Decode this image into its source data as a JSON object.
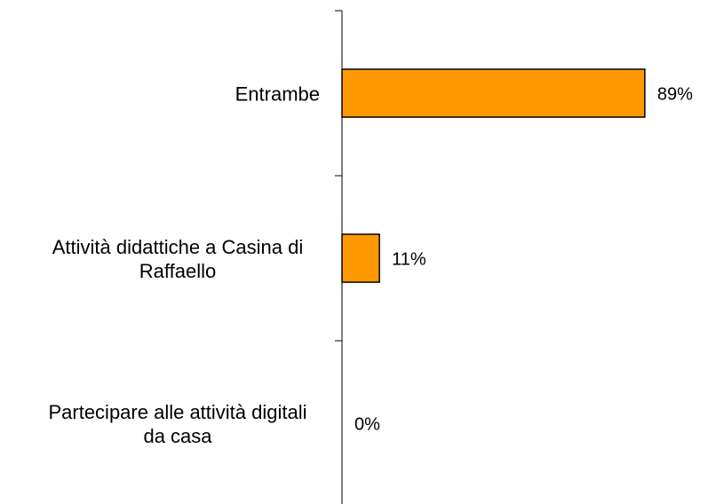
{
  "chart_data": {
    "type": "bar",
    "orientation": "horizontal",
    "categories": [
      "Entrambe",
      "Attività didattiche a Casina di Raffaello",
      "Partecipare alle attività digitali da casa"
    ],
    "values": [
      89,
      11,
      0
    ],
    "value_labels": [
      "89%",
      "11%",
      "0%"
    ],
    "color": "#ff9900",
    "xlim": [
      0,
      100
    ]
  }
}
